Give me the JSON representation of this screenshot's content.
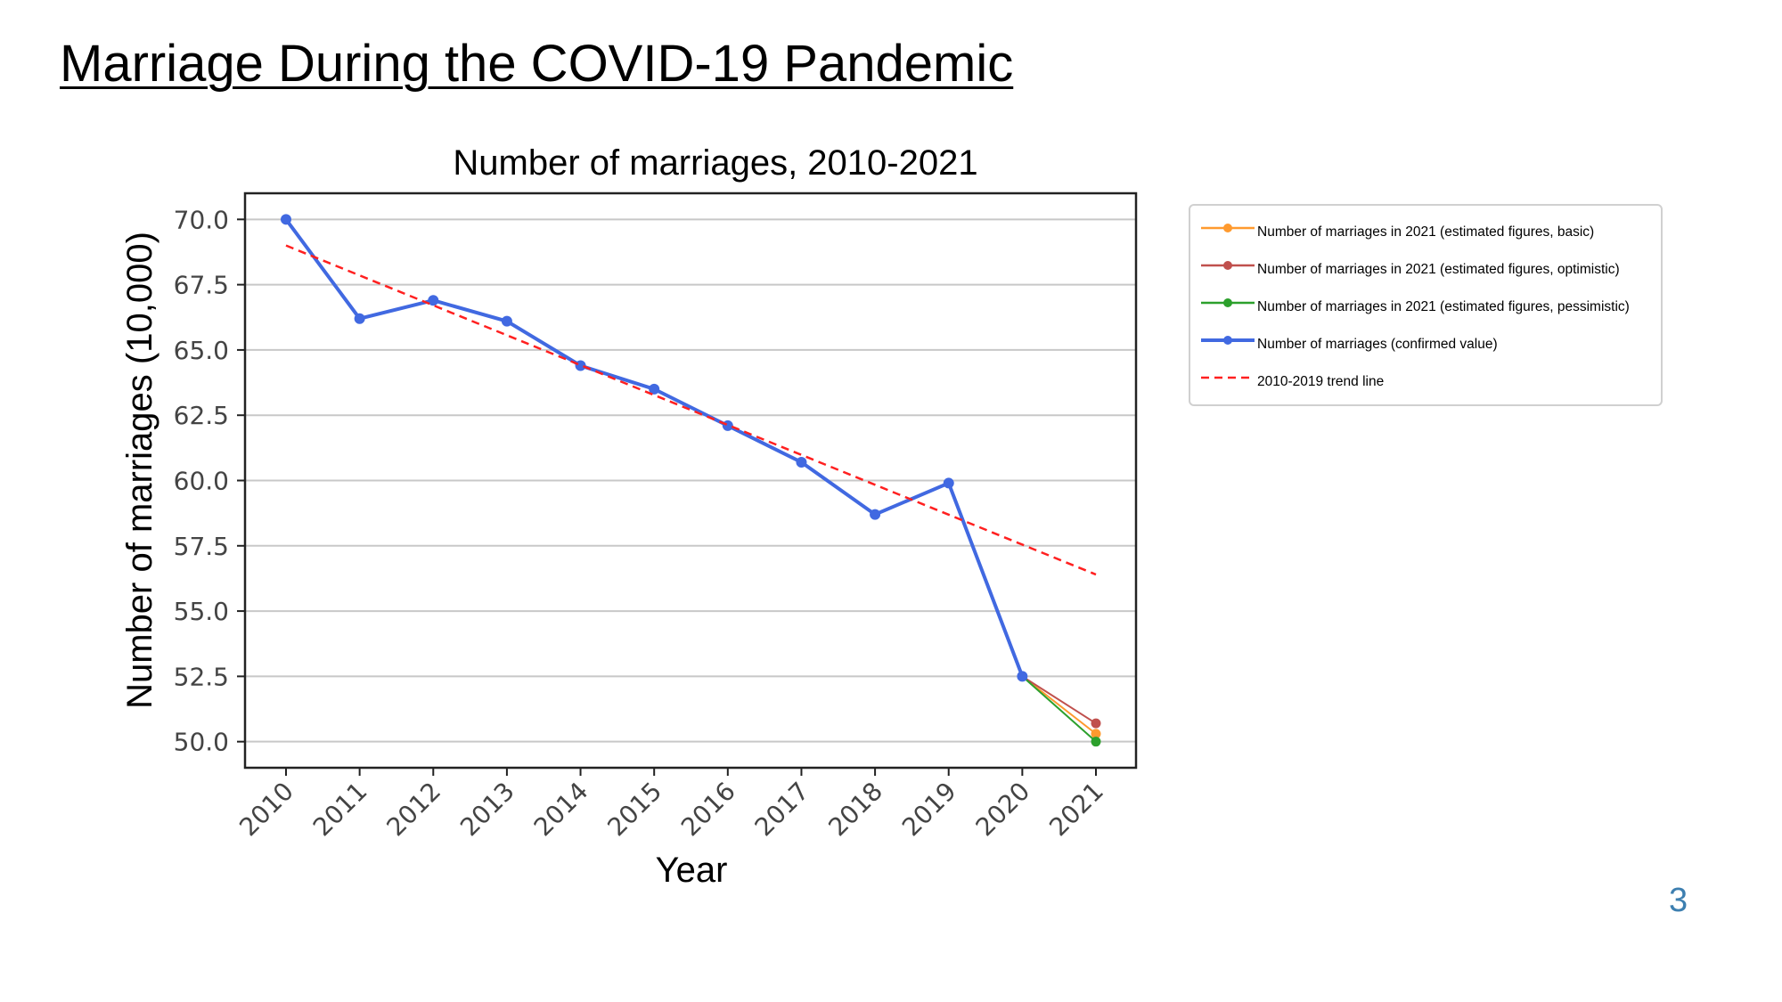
{
  "slide": {
    "title": "Marriage During the COVID-19 Pandemic",
    "page_number": "3"
  },
  "chart_data": {
    "type": "line",
    "title": "Number of marriages, 2010-2021",
    "xlabel": "Year",
    "ylabel": "Number of marriages (10,000)",
    "ylim": [
      49.0,
      71.0
    ],
    "yticks": [
      "50.0",
      "52.5",
      "55.0",
      "57.5",
      "60.0",
      "62.5",
      "65.0",
      "67.5",
      "70.0"
    ],
    "categories": [
      "2010",
      "2011",
      "2012",
      "2013",
      "2014",
      "2015",
      "2016",
      "2017",
      "2018",
      "2019",
      "2020",
      "2021"
    ],
    "grid": "horizontal",
    "legend_position": "outside-right",
    "series": [
      {
        "name": "Number of marriages in 2021 (estimated figures, basic)",
        "color": "#ff9a2e",
        "style": "solid",
        "marker": true,
        "x": [
          "2020",
          "2021"
        ],
        "values": [
          52.5,
          50.3
        ]
      },
      {
        "name": "Number of marriages in 2021 (estimated figures, optimistic)",
        "color": "#c0504d",
        "style": "solid",
        "marker": true,
        "x": [
          "2020",
          "2021"
        ],
        "values": [
          52.5,
          50.7
        ]
      },
      {
        "name": "Number of marriages in 2021 (estimated figures, pessimistic)",
        "color": "#2ca02c",
        "style": "solid",
        "marker": true,
        "x": [
          "2020",
          "2021"
        ],
        "values": [
          52.5,
          50.0
        ]
      },
      {
        "name": "Number of marriages (confirmed value)",
        "color": "#4169e1",
        "style": "solid",
        "marker": true,
        "x": [
          "2010",
          "2011",
          "2012",
          "2013",
          "2014",
          "2015",
          "2016",
          "2017",
          "2018",
          "2019",
          "2020"
        ],
        "values": [
          70.0,
          66.2,
          66.9,
          66.1,
          64.4,
          63.5,
          62.1,
          60.7,
          58.7,
          59.9,
          52.5
        ]
      },
      {
        "name": "2010-2019 trend line",
        "color": "#ff2020",
        "style": "dashed",
        "marker": false,
        "x": [
          "2010",
          "2021"
        ],
        "values": [
          69.0,
          56.4
        ]
      }
    ]
  }
}
